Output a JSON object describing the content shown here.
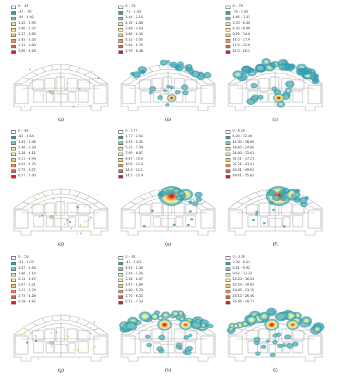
{
  "colors": {
    "c0": "#ffffff",
    "c1": "#2f9fb3",
    "c2": "#7fc4b6",
    "c3": "#d6e9a8",
    "c4": "#f7ee85",
    "c5": "#f9c66b",
    "c6": "#f28f4b",
    "c7": "#e45a3a",
    "c8": "#d7191c"
  },
  "panels": [
    {
      "caption": "(a)",
      "density": "sparse",
      "legend": [
        "0 - .47",
        ".47 - .95",
        ".95 - 1.42",
        "1.42 - 1.90",
        "1.90 - 2.37",
        "2.37 - 2.85",
        "2.85 - 3.33",
        "3.33 - 3.80",
        "3.80 - 4.28"
      ]
    },
    {
      "caption": "(b)",
      "density": "medium",
      "legend": [
        "0 - .72",
        ".72 - 1.44",
        "1.44 - 2.16",
        "2.16 - 2.88",
        "2.88 - 3.60",
        "3.60 - 4.32",
        "4.32 - 5.04",
        "5.04 - 5.76",
        "5.76 - 6.48"
      ]
    },
    {
      "caption": "(c)",
      "density": "dense",
      "legend": [
        "0 - .79",
        ".79 - 1.66",
        "1.66 - 3.31",
        "3.33 - 6.30",
        "6.30 - 9.99",
        "9.99 - 14.0",
        "14.0 - 17.9",
        "17.9 - 22.0",
        "22.0 - 26.1"
      ]
    },
    {
      "caption": "(d)",
      "density": "sparse",
      "legend": [
        "0 - .82",
        ".82 - 1.64",
        "1.64 - 2.46",
        "2.46 - 3.28",
        "3.28 - 4.11",
        "4.11 - 4.93",
        "4.93 - 5.75",
        "5.75 - 6.57",
        "6.57 - 7.40"
      ]
    },
    {
      "caption": "(e)",
      "density": "hotspot",
      "legend": [
        "0 - 1.77",
        "1.77 - 3.54",
        "3.54 - 5.32",
        "5.32 - 7.09",
        "7.09 - 8.87",
        "8.87 - 10.6",
        "10.6 - 12.4",
        "12.4 - 14.1",
        "14.1 - 15.9"
      ]
    },
    {
      "caption": "(f)",
      "density": "hotspot",
      "legend": [
        "0 - 6.20",
        "6.20 - 12.40",
        "12.40 - 18.60",
        "18.60 - 24.80",
        "24.80 - 31.01",
        "31.01 - 37.21",
        "37.21 - 43.41",
        "43.41 - 49.61",
        "49.61 - 55.82"
      ]
    },
    {
      "caption": "(g)",
      "density": "sparse",
      "legend": [
        "0 - .53",
        ".53 - 1.07",
        "1.07 - 1.60",
        "1.60 - 2.14",
        "2.14 - 2.67",
        "2.67 - 3.21",
        "3.21 - 3.74",
        "3.74 - 4.28",
        "4.28 - 4.82"
      ]
    },
    {
      "caption": "(h)",
      "density": "wide",
      "legend": [
        "0 - .81",
        ".81 - 1.63",
        "1.63 - 2.44",
        "2.44 - 3.26",
        "3.26 - 4.07",
        "4.07 - 4.89",
        "4.89 - 5.70",
        "5.70 - 6.52",
        "6.52 - 7.33"
      ]
    },
    {
      "caption": "(i)",
      "density": "wide",
      "legend": [
        "0 - 3.30",
        "3.30 - 6.61",
        "6.61 - 9.92",
        "9.92 - 13.23",
        "13.23 - 16.54",
        "16.54 - 19.85",
        "19.85 - 23.15",
        "23.15 - 26.46",
        "26.46 - 29.77"
      ]
    }
  ]
}
